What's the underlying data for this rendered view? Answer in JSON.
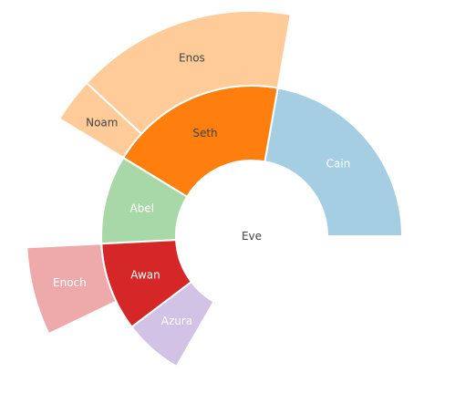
{
  "chart_data": {
    "type": "sunburst",
    "root": "Eve",
    "nodes": [
      {
        "id": "Cain",
        "parent": "Eve",
        "value": 14,
        "color": "#a6cee3",
        "text_color": "#ffffff"
      },
      {
        "id": "Seth",
        "parent": "Eve",
        "value": 12,
        "color": "#ff7f0e",
        "text_color": "#444444"
      },
      {
        "id": "Enos",
        "parent": "Seth",
        "value": 10,
        "color": "#ffcc99",
        "text_color": "#444444"
      },
      {
        "id": "Noam",
        "parent": "Seth",
        "value": 2,
        "color": "#ffcc99",
        "text_color": "#444444"
      },
      {
        "id": "Abel",
        "parent": "Eve",
        "value": 6,
        "color": "#a8d8a8",
        "text_color": "#ffffff"
      },
      {
        "id": "Awan",
        "parent": "Eve",
        "value": 6,
        "color": "#d62728",
        "text_color": "#ffffff"
      },
      {
        "id": "Enoch",
        "parent": "Awan",
        "value": 4,
        "color": "#eeaaaa",
        "text_color": "#ffffff"
      },
      {
        "id": "Azura",
        "parent": "Eve",
        "value": 4,
        "color": "#d1c2e6",
        "text_color": "#ffffff"
      }
    ]
  }
}
